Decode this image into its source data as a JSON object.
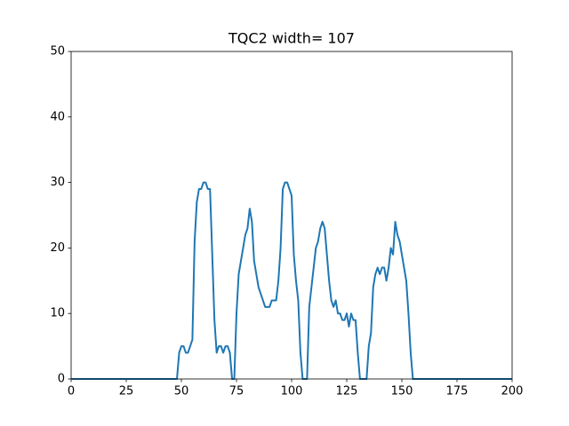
{
  "chart_data": {
    "type": "line",
    "title": "TQC2 width= 107",
    "x": [
      0,
      48,
      49,
      50,
      51,
      52,
      53,
      54,
      55,
      56,
      57,
      58,
      59,
      60,
      61,
      62,
      63,
      64,
      65,
      66,
      67,
      68,
      69,
      70,
      71,
      72,
      73,
      74,
      75,
      76,
      77,
      78,
      79,
      80,
      81,
      82,
      83,
      84,
      85,
      86,
      87,
      88,
      89,
      90,
      91,
      92,
      93,
      94,
      95,
      96,
      97,
      98,
      99,
      100,
      101,
      102,
      103,
      104,
      105,
      106,
      107,
      108,
      109,
      110,
      111,
      112,
      113,
      114,
      115,
      116,
      117,
      118,
      119,
      120,
      121,
      122,
      123,
      124,
      125,
      126,
      127,
      128,
      129,
      130,
      131,
      132,
      133,
      134,
      135,
      136,
      137,
      138,
      139,
      140,
      141,
      142,
      143,
      144,
      145,
      146,
      147,
      148,
      149,
      150,
      151,
      152,
      153,
      154,
      155,
      200
    ],
    "values": [
      0,
      0,
      4,
      5,
      5,
      4,
      4,
      5,
      6,
      21,
      27,
      29,
      29,
      30,
      30,
      29,
      29,
      19,
      9,
      4,
      5,
      5,
      4,
      5,
      5,
      4,
      0,
      0,
      10,
      16,
      18,
      20,
      22,
      23,
      26,
      24,
      18,
      16,
      14,
      13,
      12,
      11,
      11,
      11,
      12,
      12,
      12,
      15,
      20,
      29,
      30,
      30,
      29,
      28,
      19,
      15,
      12,
      4,
      0,
      0,
      0,
      11,
      14,
      17,
      20,
      21,
      23,
      24,
      23,
      19,
      15,
      12,
      11,
      12,
      10,
      10,
      9,
      9,
      10,
      8,
      10,
      9,
      9,
      4,
      0,
      0,
      0,
      0,
      5,
      7,
      14,
      16,
      17,
      16,
      17,
      17,
      15,
      17,
      20,
      19,
      24,
      22,
      21,
      19,
      17,
      15,
      10,
      4,
      0,
      0
    ],
    "color": "#1f77b4",
    "xlim": [
      0,
      200
    ],
    "xticks": [
      0,
      25,
      50,
      75,
      100,
      125,
      150,
      175,
      200
    ],
    "ylim": [
      0,
      50
    ],
    "yticks": [
      0,
      10,
      20,
      30,
      40,
      50
    ],
    "grid": false
  }
}
